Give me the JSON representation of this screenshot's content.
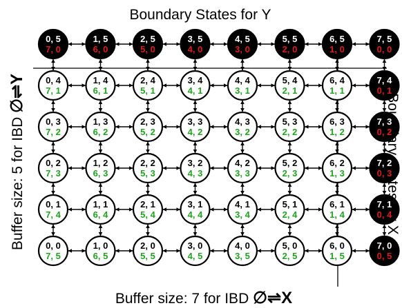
{
  "labels": {
    "top": "Boundary States for Y",
    "right": "Boundary States for X",
    "left_prefix": "Buffer size: 5 for IBD ",
    "left_symbol": "∅⇌Y",
    "bottom_prefix": "Buffer size: 7 for IBD ",
    "bottom_symbol": "∅⇌X"
  },
  "grid": {
    "x_max": 7,
    "y_max": 5,
    "buffer_x": 7,
    "buffer_y": 5
  },
  "colors": {
    "interior_fill": "#ffffff",
    "boundary_fill": "#000000",
    "top_text": "#ffffff",
    "interior_top_text": "#000000",
    "interior_bottom_text": "#1ea51e",
    "boundary_bottom_text": "#e0191e",
    "edge": "#000000"
  }
}
